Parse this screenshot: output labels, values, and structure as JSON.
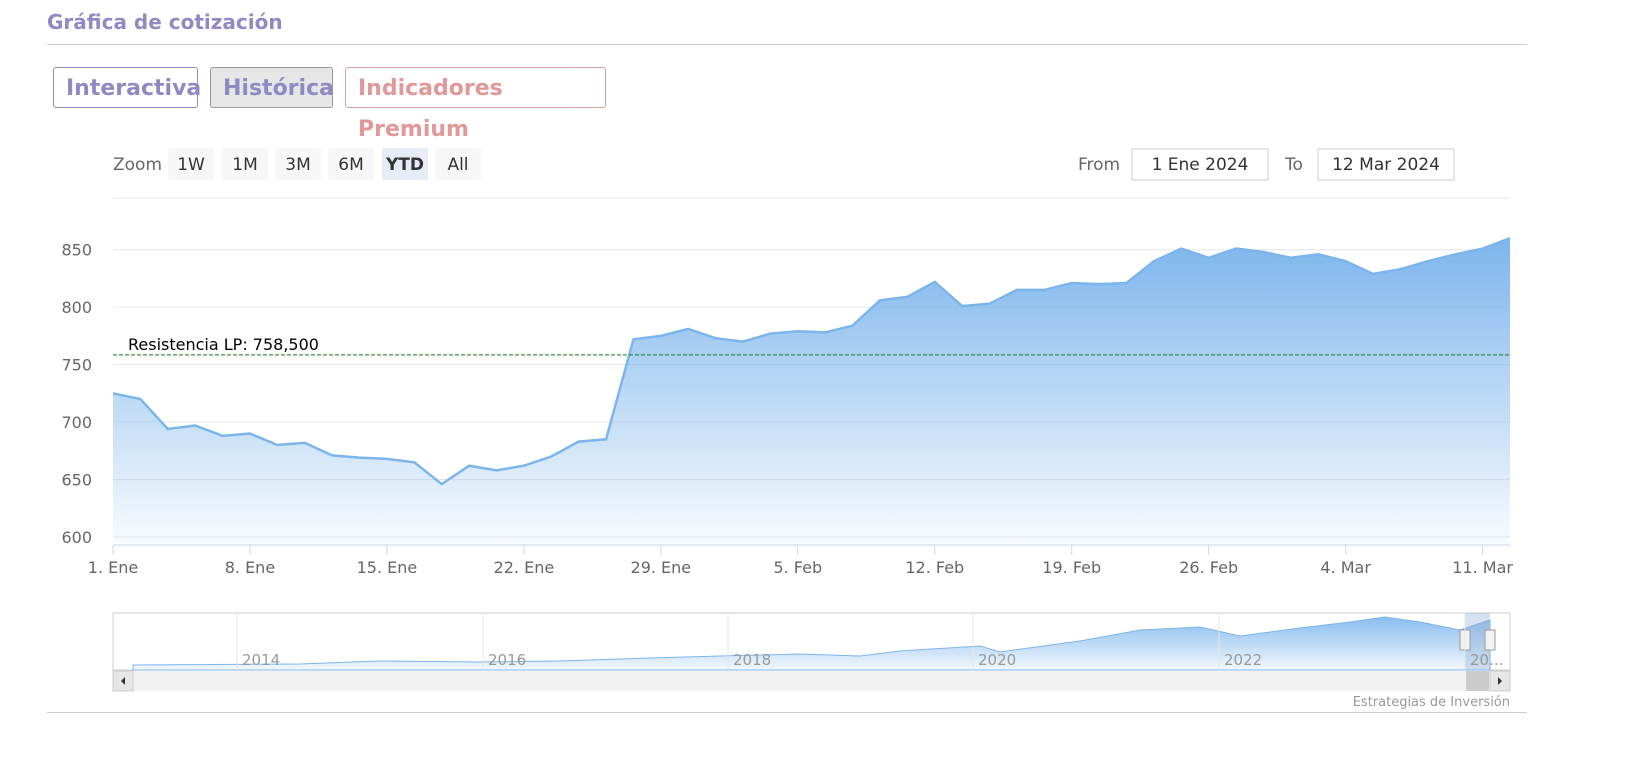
{
  "header": {
    "title": "Gráfica de cotización"
  },
  "tabs": [
    "Interactiva",
    "Histórica",
    "Indicadores Premium"
  ],
  "zoom": {
    "label": "Zoom",
    "buttons": [
      "1W",
      "1M",
      "3M",
      "6M",
      "YTD",
      "All"
    ],
    "selected": "YTD"
  },
  "range": {
    "from_label": "From",
    "from": "1 Ene 2024",
    "to_label": "To",
    "to": "12 Mar 2024"
  },
  "chart_data": {
    "type": "area",
    "color": "#7cb5ec",
    "categories": [
      "1. Ene",
      null,
      null,
      null,
      null,
      "8. Ene",
      null,
      null,
      null,
      null,
      "15. Ene",
      null,
      null,
      null,
      null,
      "22. Ene",
      null,
      null,
      null,
      null,
      "29. Ene",
      null,
      null,
      null,
      null,
      "5. Feb",
      null,
      null,
      null,
      null,
      "12. Feb",
      null,
      null,
      null,
      null,
      "19. Feb",
      null,
      null,
      null,
      null,
      "26. Feb",
      null,
      null,
      null,
      null,
      "4. Mar",
      null,
      null,
      null,
      null,
      "11. Mar",
      null
    ],
    "values": [
      725,
      720,
      694,
      697,
      688,
      690,
      680,
      682,
      671,
      669,
      668,
      665,
      646,
      662,
      658,
      662,
      670,
      683,
      685,
      772,
      775,
      781,
      773,
      770,
      777,
      779,
      778,
      784,
      806,
      809,
      822,
      801,
      803,
      815,
      815,
      821,
      820,
      821,
      840,
      851,
      843,
      851,
      848,
      843,
      846,
      840,
      829,
      833,
      840,
      846,
      851,
      860
    ],
    "ylim": [
      593,
      895
    ],
    "yticks": [
      600,
      650,
      700,
      750,
      800,
      850
    ],
    "grid": true,
    "resistance": {
      "value": 758.5,
      "label": "Resistencia LP: 758,500",
      "color": "#1a7a1a"
    },
    "navigator_labels": [
      "2014",
      "2016",
      "2018",
      "2020",
      "2022",
      "20..."
    ]
  },
  "credits": "Estrategias de Inversión"
}
